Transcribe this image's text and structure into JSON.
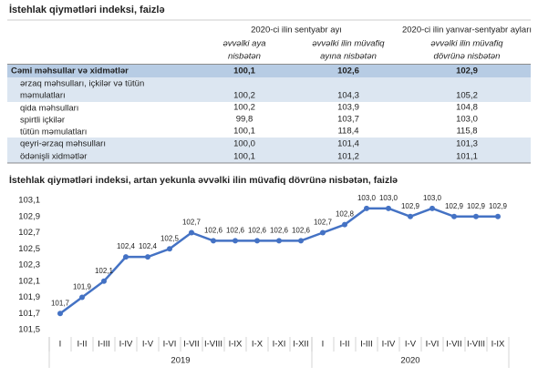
{
  "table": {
    "title": "İstehlak qiymətləri indeksi, faizlə",
    "groups": [
      "2020-ci ilin sentyabr ayı",
      "2020-ci ilin yanvar-sentyabr ayları"
    ],
    "subheaders": [
      [
        "əvvəlki aya",
        "nisbətən"
      ],
      [
        "əvvəlki ilin müvafiq",
        "ayına nisbətən"
      ],
      [
        "əvvəlki ilin müvafiq",
        "dövrünə nisbətən"
      ]
    ],
    "rows": [
      {
        "label": [
          "Cəmi məhsullar və xidmətlər"
        ],
        "cells": [
          "100,1",
          "102,6",
          "102,9"
        ]
      },
      {
        "label": [
          "ərzaq məhsulları, içkilər və tütün",
          "məmulatları"
        ],
        "cells": [
          "100,2",
          "104,3",
          "105,2"
        ]
      },
      {
        "label": [
          "qida məhsulları"
        ],
        "cells": [
          "100,2",
          "103,9",
          "104,8"
        ]
      },
      {
        "label": [
          "spirtli içkilər"
        ],
        "cells": [
          "99,8",
          "103,7",
          "103,0"
        ]
      },
      {
        "label": [
          "tütün məmulatları"
        ],
        "cells": [
          "100,1",
          "118,4",
          "115,8"
        ]
      },
      {
        "label": [
          "qeyri-ərzaq məhsulları"
        ],
        "cells": [
          "100,0",
          "101,4",
          "101,3"
        ]
      },
      {
        "label": [
          "ödənişli xidmətlər"
        ],
        "cells": [
          "100,1",
          "101,2",
          "101,1"
        ]
      }
    ]
  },
  "chart_data": {
    "type": "line",
    "title": "İstehlak qiymətləri indeksi, artan yekunla əvvəlki ilin müvafiq dövrünə nisbətən, faizlə",
    "categories": [
      "I",
      "I-II",
      "I-III",
      "I-IV",
      "I-V",
      "I-VI",
      "I-VII",
      "I-VIII",
      "I-IX",
      "I-X",
      "I-XI",
      "I-XII",
      "I",
      "I-II",
      "I-III",
      "I-IV",
      "I-V",
      "I-VI",
      "I-VII",
      "I-VIII",
      "I-IX"
    ],
    "years": [
      "2019",
      "2020"
    ],
    "values": [
      101.7,
      101.9,
      102.1,
      102.4,
      102.4,
      102.5,
      102.7,
      102.6,
      102.6,
      102.6,
      102.6,
      102.6,
      102.7,
      102.8,
      103.0,
      103.0,
      102.9,
      103.0,
      102.9,
      102.9,
      102.9
    ],
    "value_labels": [
      "101,7",
      "101,9",
      "102,1",
      "102,4",
      "102,4",
      "102,5",
      "102,7",
      "102,6",
      "102,6",
      "102,6",
      "102,6",
      "102,6",
      "102,7",
      "102,8",
      "103,0",
      "103,0",
      "102,9",
      "103,0",
      "102,9",
      "102,9",
      "102,9"
    ],
    "color": "#4472c4",
    "ylim": [
      101.5,
      103.1
    ],
    "yticks": [
      {
        "value": 101.5,
        "label": "101,5"
      },
      {
        "value": 101.7,
        "label": "101,7"
      },
      {
        "value": 101.9,
        "label": "101,9"
      },
      {
        "value": 102.1,
        "label": "102,1"
      },
      {
        "value": 102.3,
        "label": "102,3"
      },
      {
        "value": 102.5,
        "label": "102,5"
      },
      {
        "value": 102.7,
        "label": "102,7"
      },
      {
        "value": 102.9,
        "label": "102,9"
      },
      {
        "value": 103.1,
        "label": "103,1"
      }
    ]
  }
}
